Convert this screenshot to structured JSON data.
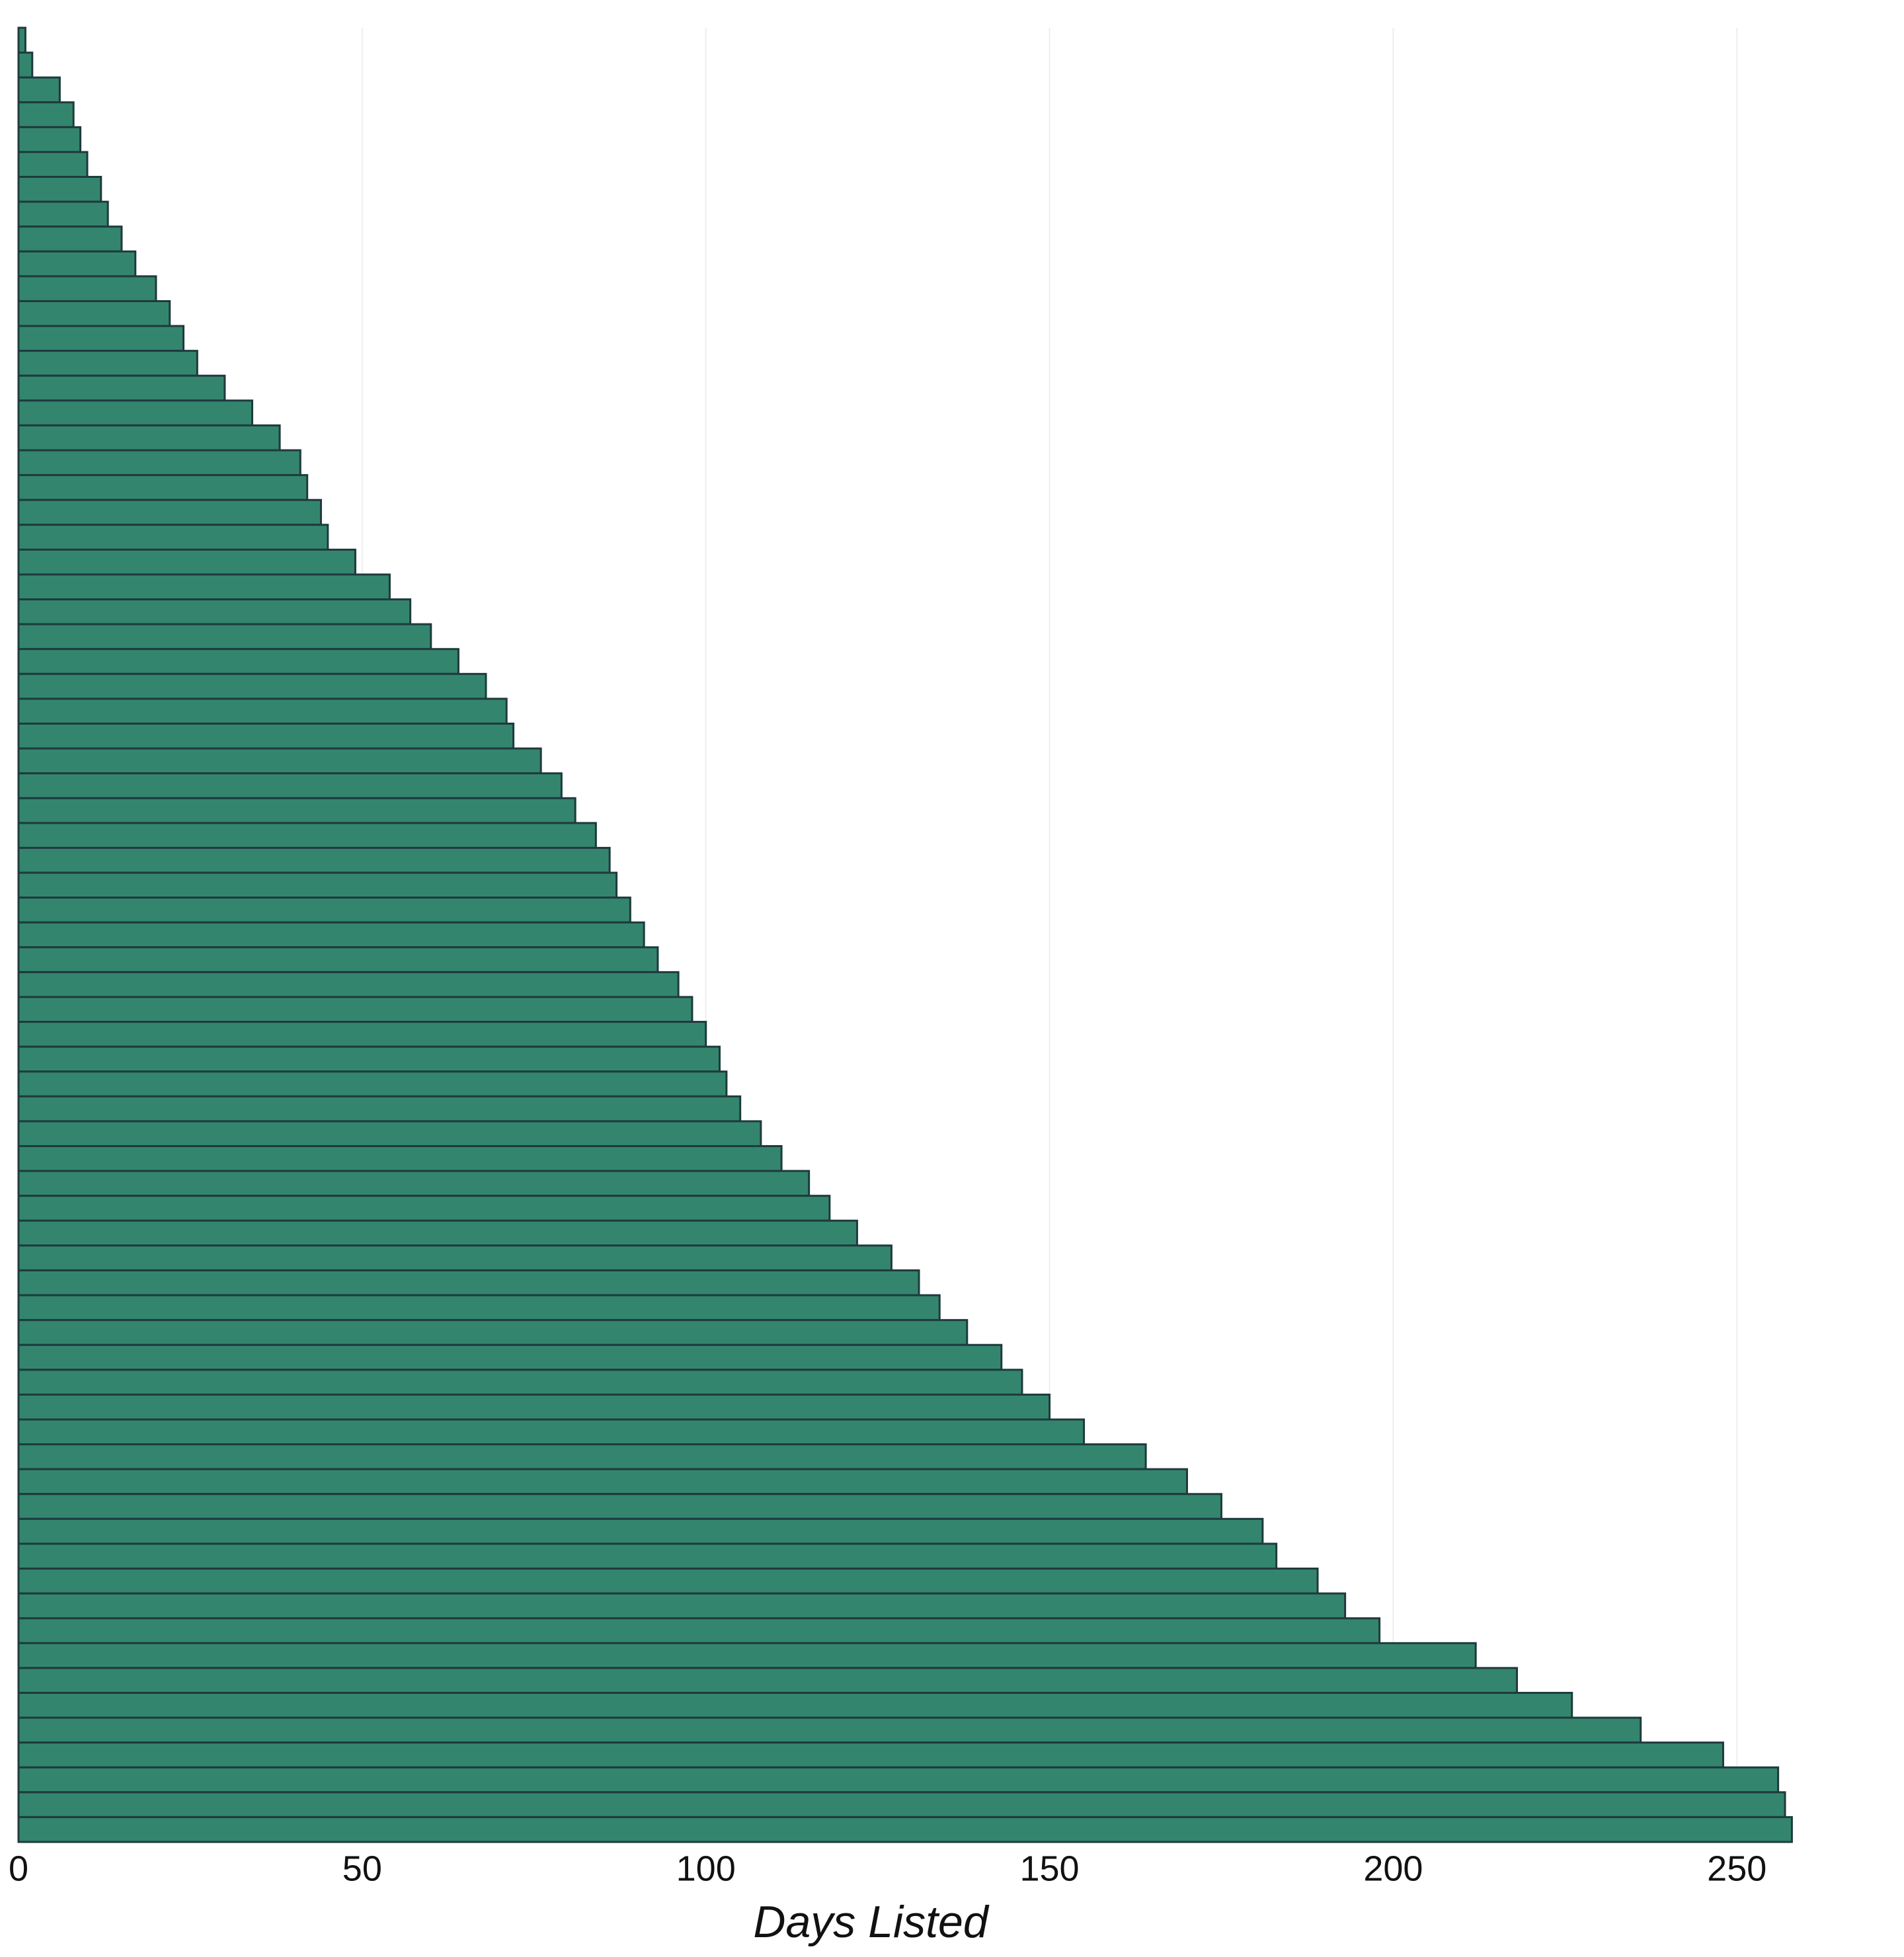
{
  "chart_data": {
    "type": "bar",
    "orientation": "horizontal",
    "x_label": "Days Listed",
    "values": [
      1,
      2,
      6,
      8,
      9,
      10,
      12,
      13,
      15,
      17,
      20,
      22,
      24,
      26,
      30,
      34,
      38,
      41,
      42,
      44,
      45,
      49,
      54,
      57,
      60,
      64,
      68,
      71,
      72,
      76,
      79,
      81,
      84,
      86,
      87,
      89,
      91,
      93,
      96,
      98,
      100,
      102,
      103,
      105,
      108,
      111,
      115,
      118,
      122,
      127,
      131,
      134,
      138,
      143,
      146,
      150,
      155,
      164,
      170,
      175,
      181,
      183,
      189,
      193,
      198,
      212,
      218,
      226,
      236,
      248,
      256,
      257,
      258
    ],
    "color": "#33866d",
    "edge_color": "#1f3a3d",
    "xlim": [
      0,
      262
    ],
    "xticks": [
      0,
      50,
      100,
      150,
      200,
      250
    ],
    "grid": true
  }
}
